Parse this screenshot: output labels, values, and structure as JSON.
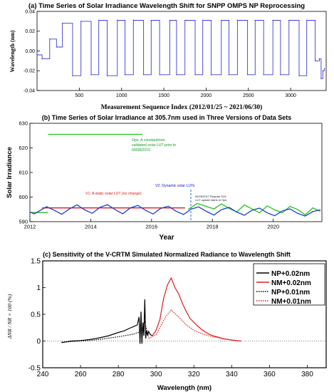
{
  "chart_data": [
    {
      "type": "line",
      "title": "(a) Time Series of Solar Irradiance Wavelength Shift for SNPP OMPS NP Reprocessing",
      "xlabel": "Measurement Sequence Index (2012/01/25 ~ 2021/06/30)",
      "ylabel": "Wavelength (nm)",
      "xlim": [
        0,
        3420
      ],
      "ylim": [
        -0.04,
        0.04
      ],
      "xticks": [
        500,
        1000,
        1500,
        2000,
        2500,
        3000
      ],
      "yticks": [
        -0.04,
        -0.02,
        0.0,
        0.02,
        0.04
      ],
      "ytick_labels": [
        "-0.04",
        "-0.02",
        "0.00",
        "0.02",
        "0.04"
      ],
      "grid": false,
      "series": [
        {
          "color": "#3b3bd6",
          "x": [
            0,
            60,
            150,
            230,
            300,
            420,
            520,
            640,
            730,
            830,
            950,
            1040,
            1140,
            1260,
            1350,
            1450,
            1570,
            1650,
            1750,
            1870,
            1960,
            2060,
            2180,
            2270,
            2370,
            2490,
            2580,
            2680,
            2790,
            2880,
            2980,
            3100,
            3190,
            3290,
            3340,
            3360,
            3380,
            3400
          ],
          "y": [
            -0.004,
            -0.008,
            0.012,
            0.004,
            0.028,
            -0.025,
            0.03,
            -0.024,
            0.031,
            -0.025,
            0.031,
            -0.024,
            0.031,
            -0.024,
            0.031,
            -0.024,
            0.031,
            -0.024,
            0.031,
            -0.024,
            0.031,
            -0.024,
            0.031,
            -0.024,
            0.031,
            -0.024,
            0.031,
            -0.024,
            0.031,
            -0.024,
            0.031,
            -0.025,
            0.031,
            -0.01,
            -0.008,
            -0.028,
            -0.02,
            -0.018
          ]
        }
      ]
    },
    {
      "type": "line",
      "title": "(b) Time Series of Solar Irradiance at 305.7nm used in Three Versions of Data Sets",
      "xlabel": "Year",
      "ylabel": "Solar Irradiance",
      "xlim": [
        2012,
        2021.6
      ],
      "ylim": [
        590,
        630
      ],
      "xticks": [
        2012,
        2014,
        2016,
        2018,
        2020
      ],
      "yticks": [
        590,
        600,
        610,
        620,
        630
      ],
      "annotations": [
        {
          "text": "Ops: A constant/non-validated solar LUT prior to 09/08/2015",
          "color": "#10a020"
        },
        {
          "text": "V1: A static solar LUT (no change)",
          "color": "#e01010"
        },
        {
          "text": "V2: Dynamic solar LUTs",
          "color": "#1010cc"
        },
        {
          "text": "06/26/2017 Regular SOL LUT update starts in Ops",
          "color": "#222222"
        }
      ],
      "series": [
        {
          "color": "#e31a1c",
          "x": [
            2012.4,
            2017.1
          ],
          "y": [
            595.6,
            595.6
          ]
        },
        {
          "color": "#22c322",
          "x": [
            2012.6,
            2015.7
          ],
          "y": [
            625.5,
            625.5
          ]
        },
        {
          "color": "#22c322",
          "x": [
            2012.0,
            2012.6
          ],
          "y": [
            593.7,
            593.7
          ]
        },
        {
          "color": "#22c322",
          "x": [
            2017.2,
            2017.5,
            2017.8,
            2018.05,
            2018.3,
            2018.55,
            2018.8,
            2019.05,
            2019.3,
            2019.55,
            2019.8,
            2020.05,
            2020.3,
            2020.55,
            2020.8,
            2021.05,
            2021.3,
            2021.55
          ],
          "y": [
            595.0,
            597.4,
            596.2,
            595.2,
            597.2,
            595.4,
            593.9,
            596.8,
            595.2,
            593.6,
            596.4,
            594.8,
            593.6,
            596.2,
            595.0,
            592.8,
            595.6,
            594.2
          ]
        },
        {
          "color": "#1f3fd0",
          "x": [
            2012.0,
            2012.15,
            2012.3,
            2012.55,
            2012.8,
            2013.05,
            2013.3,
            2013.55,
            2013.8,
            2014.05,
            2014.3,
            2014.55,
            2014.8,
            2015.05,
            2015.3,
            2015.55,
            2015.8,
            2016.05,
            2016.3,
            2016.55,
            2016.8,
            2017.05,
            2017.3,
            2017.55,
            2017.8,
            2018.05,
            2018.3,
            2018.55,
            2018.8,
            2019.05,
            2019.3,
            2019.55,
            2019.8,
            2020.05,
            2020.3,
            2020.55,
            2020.8,
            2021.05,
            2021.3,
            2021.55
          ],
          "y": [
            593.9,
            593.2,
            594.3,
            596.1,
            594.6,
            593.0,
            595.2,
            596.8,
            594.8,
            593.4,
            595.8,
            596.9,
            594.9,
            593.2,
            595.6,
            596.6,
            594.6,
            593.1,
            595.4,
            596.3,
            594.3,
            592.9,
            595.1,
            596.0,
            594.2,
            592.7,
            594.9,
            595.8,
            593.9,
            592.6,
            594.6,
            595.5,
            593.6,
            592.4,
            594.4,
            595.2,
            593.4,
            592.3,
            594.1,
            594.8
          ]
        }
      ]
    },
    {
      "type": "line",
      "title": "(c) Sensitivity of the V-CRTM Simulated Normalized Radiance to Wavelength Shift",
      "xlabel": "Wavelength (nm)",
      "ylabel": "ΔNR / NR × 100 (%)",
      "xlim": [
        240,
        390
      ],
      "ylim": [
        -0.5,
        1.5
      ],
      "xticks": [
        240,
        260,
        280,
        300,
        320,
        340,
        360,
        380
      ],
      "yticks": [
        -0.5,
        0,
        0.5,
        1,
        1.5
      ],
      "ytick_labels": [
        "-0.5",
        "0",
        "0.5",
        "1",
        "1.5"
      ],
      "legend_position": "top-right",
      "series": [
        {
          "name": "NP+0.02nm",
          "color": "#000000",
          "dash": "solid",
          "x": [
            250,
            255,
            260,
            265,
            270,
            275,
            280,
            283,
            286,
            288,
            290,
            291,
            291.5,
            292,
            292.5,
            293,
            293.5,
            294,
            294.5,
            295,
            295.5,
            296,
            297,
            298
          ],
          "y": [
            -0.03,
            0.0,
            0.01,
            0.03,
            0.06,
            0.1,
            0.16,
            0.19,
            0.24,
            0.27,
            0.3,
            0.45,
            -0.05,
            0.55,
            -0.05,
            0.35,
            0.1,
            0.78,
            0.05,
            0.2,
            0.1,
            0.18,
            0.12,
            0.1
          ]
        },
        {
          "name": "NM+0.02nm",
          "color": "#e31a1c",
          "dash": "solid",
          "x": [
            298,
            300,
            302,
            304,
            306,
            308,
            310,
            312,
            314,
            316,
            318,
            320,
            322,
            324,
            326,
            328,
            330,
            332,
            334,
            336,
            338,
            340,
            342,
            345
          ],
          "y": [
            0.1,
            0.2,
            0.4,
            0.8,
            1.05,
            1.18,
            1.0,
            0.88,
            0.7,
            0.55,
            0.42,
            0.35,
            0.28,
            0.22,
            0.17,
            0.13,
            0.1,
            0.08,
            0.06,
            0.04,
            0.03,
            0.02,
            0.01,
            0.0
          ]
        },
        {
          "name": "NP+0.01nm",
          "color": "#000000",
          "dash": "dotted",
          "x": [
            250,
            260,
            270,
            280,
            288,
            292,
            294,
            296
          ],
          "y": [
            -0.02,
            0.0,
            0.03,
            0.08,
            0.13,
            0.18,
            0.35,
            0.08
          ]
        },
        {
          "name": "NM+0.01nm",
          "color": "#e31a1c",
          "dash": "dotted",
          "x": [
            296,
            300,
            305,
            308,
            312,
            316,
            320,
            325,
            330,
            335,
            340,
            345
          ],
          "y": [
            0.05,
            0.12,
            0.45,
            0.58,
            0.45,
            0.3,
            0.2,
            0.13,
            0.08,
            0.05,
            0.02,
            0.0
          ]
        }
      ]
    }
  ]
}
